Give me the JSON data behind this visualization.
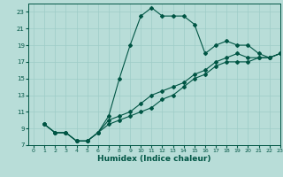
{
  "title": "",
  "xlabel": "Humidex (Indice chaleur)",
  "background_color": "#b8ddd8",
  "grid_color": "#9eccc7",
  "line_color": "#005544",
  "xlim": [
    -0.5,
    23
  ],
  "ylim": [
    7,
    24
  ],
  "yticks": [
    7,
    9,
    11,
    13,
    15,
    17,
    19,
    21,
    23
  ],
  "xticks": [
    0,
    1,
    2,
    3,
    4,
    5,
    6,
    7,
    8,
    9,
    10,
    11,
    12,
    13,
    14,
    15,
    16,
    17,
    18,
    19,
    20,
    21,
    22,
    23
  ],
  "line1_x": [
    1,
    2,
    3,
    4,
    5,
    6,
    7,
    8,
    9,
    10,
    11,
    12,
    13,
    14,
    15,
    16,
    17,
    18,
    19,
    20,
    21,
    22,
    23
  ],
  "line1_y": [
    9.5,
    8.5,
    8.5,
    7.5,
    7.5,
    8.5,
    10.5,
    15.0,
    19.0,
    22.5,
    23.5,
    22.5,
    22.5,
    22.5,
    21.5,
    18.0,
    19.0,
    19.5,
    19.0,
    19.0,
    18.0,
    17.5,
    18.0
  ],
  "line2_x": [
    1,
    2,
    3,
    4,
    5,
    6,
    7,
    8,
    9,
    10,
    11,
    12,
    13,
    14,
    15,
    16,
    17,
    18,
    19,
    20,
    21,
    22,
    23
  ],
  "line2_y": [
    9.5,
    8.5,
    8.5,
    7.5,
    7.5,
    8.5,
    10.0,
    10.5,
    11.0,
    12.0,
    13.0,
    13.5,
    14.0,
    14.5,
    15.5,
    16.0,
    17.0,
    17.5,
    18.0,
    17.5,
    17.5,
    17.5,
    18.0
  ],
  "line3_x": [
    1,
    2,
    3,
    4,
    5,
    6,
    7,
    8,
    9,
    10,
    11,
    12,
    13,
    14,
    15,
    16,
    17,
    18,
    19,
    20,
    21,
    22,
    23
  ],
  "line3_y": [
    9.5,
    8.5,
    8.5,
    7.5,
    7.5,
    8.5,
    9.5,
    10.0,
    10.5,
    11.0,
    11.5,
    12.5,
    13.0,
    14.0,
    15.0,
    15.5,
    16.5,
    17.0,
    17.0,
    17.0,
    17.5,
    17.5,
    18.0
  ]
}
